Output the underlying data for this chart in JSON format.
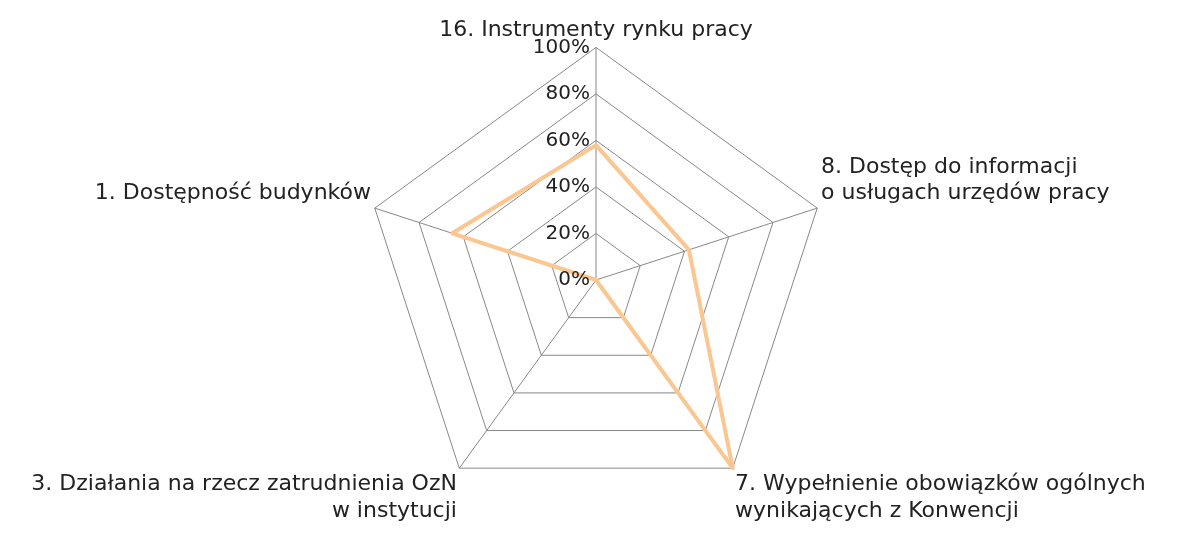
{
  "chart_data": {
    "type": "radar",
    "categories": [
      "16. Instrumenty rynku pracy",
      "8. Dostęp do informacji\no usługach urzędów pracy",
      "7. Wypełnienie obowiązków ogólnych\nwynikających z Konwencji",
      "3. Działania na rzecz zatrudnienia OzN\nw instytucji",
      "1. Dostępność budynków"
    ],
    "series": [
      {
        "color": "#fbc68f",
        "values": [
          58,
          42,
          100,
          0,
          65
        ]
      }
    ],
    "ylim": [
      0,
      100
    ],
    "yticks": [
      {
        "value": 0,
        "label": "0%"
      },
      {
        "value": 20,
        "label": "20%"
      },
      {
        "value": 40,
        "label": "40%"
      },
      {
        "value": 60,
        "label": "60%"
      },
      {
        "value": 80,
        "label": "80%"
      },
      {
        "value": 100,
        "label": "100%"
      }
    ],
    "grid": true,
    "legend": false,
    "marker": "none",
    "line_style": "solid"
  }
}
